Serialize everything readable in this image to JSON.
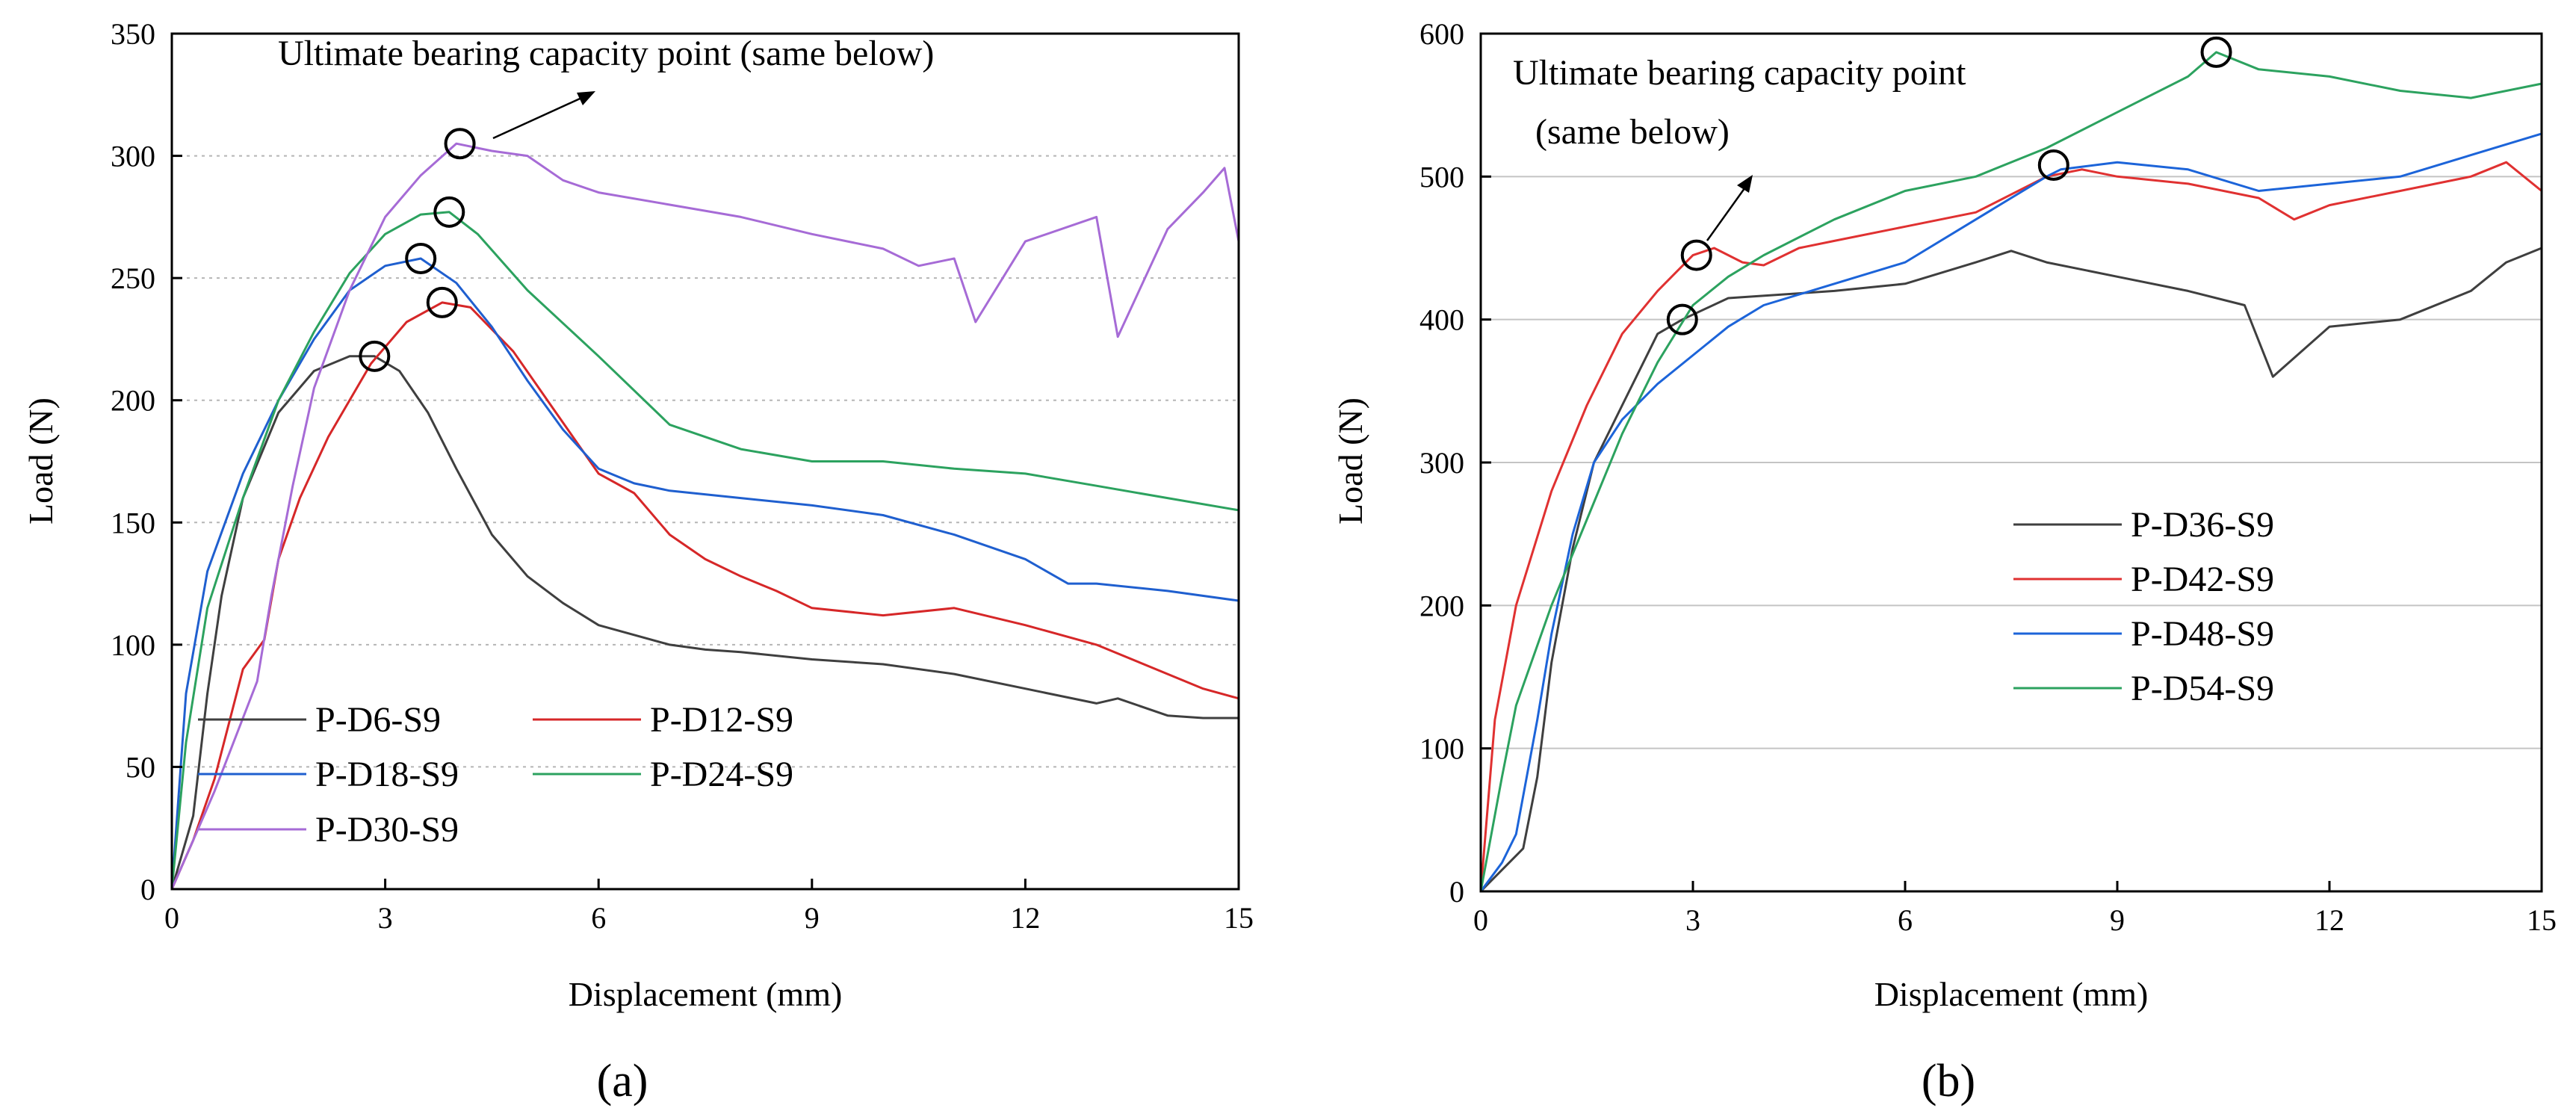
{
  "chart_data": [
    {
      "panel_label": "(a)",
      "type": "line",
      "xlabel": "Displacement (mm)",
      "ylabel": "Load (N)",
      "xlim": [
        0,
        15
      ],
      "ylim": [
        0,
        350
      ],
      "xticks": [
        0,
        3,
        6,
        9,
        12,
        15
      ],
      "yticks": [
        0,
        50,
        100,
        150,
        200,
        250,
        300,
        350
      ],
      "grid": "horizontal-dotted",
      "annotation": "Ultimate bearing capacity point (same below)",
      "legend_position": "bottom-left",
      "series": [
        {
          "name": "P-D6-S9",
          "color": "#3f3f3f",
          "x": [
            0,
            0.3,
            0.5,
            0.7,
            1.0,
            1.5,
            2.0,
            2.5,
            2.85,
            3.2,
            3.6,
            4.0,
            4.5,
            5.0,
            5.5,
            6.0,
            6.5,
            7.0,
            7.5,
            8.0,
            9.0,
            10.0,
            11.0,
            12.0,
            13.0,
            13.3,
            14.0,
            14.5,
            15.0
          ],
          "y": [
            0,
            30,
            80,
            120,
            160,
            195,
            212,
            218,
            218,
            212,
            195,
            172,
            145,
            128,
            117,
            108,
            104,
            100,
            98,
            97,
            94,
            92,
            88,
            82,
            76,
            78,
            71,
            70,
            70
          ],
          "ultimate": [
            2.85,
            218
          ]
        },
        {
          "name": "P-D12-S9",
          "color": "#d62728",
          "x": [
            0,
            0.3,
            0.6,
            1.0,
            1.3,
            1.5,
            1.8,
            2.2,
            2.8,
            3.3,
            3.8,
            4.2,
            4.8,
            5.4,
            6.0,
            6.5,
            7.0,
            7.5,
            8.0,
            8.5,
            9.0,
            10.0,
            11.0,
            12.0,
            13.0,
            14.0,
            14.5,
            15.0
          ],
          "y": [
            0,
            20,
            45,
            90,
            102,
            135,
            160,
            185,
            215,
            232,
            240,
            238,
            220,
            195,
            170,
            162,
            145,
            135,
            128,
            122,
            115,
            112,
            115,
            108,
            100,
            88,
            82,
            78
          ],
          "ultimate": [
            3.8,
            240
          ]
        },
        {
          "name": "P-D18-S9",
          "color": "#1f5fcf",
          "x": [
            0,
            0.2,
            0.5,
            1.0,
            1.5,
            2.0,
            2.5,
            3.0,
            3.5,
            4.0,
            4.5,
            5.0,
            5.5,
            6.0,
            6.5,
            7.0,
            8.0,
            9.0,
            10.0,
            11.0,
            12.0,
            12.6,
            13.0,
            14.0,
            15.0
          ],
          "y": [
            0,
            80,
            130,
            170,
            200,
            225,
            245,
            255,
            258,
            248,
            230,
            208,
            188,
            172,
            166,
            163,
            160,
            157,
            153,
            145,
            135,
            125,
            125,
            122,
            118
          ],
          "ultimate": [
            3.5,
            258
          ]
        },
        {
          "name": "P-D24-S9",
          "color": "#2ca25f",
          "x": [
            0,
            0.2,
            0.5,
            1.0,
            1.5,
            2.0,
            2.5,
            3.0,
            3.5,
            3.9,
            4.3,
            5.0,
            6.0,
            7.0,
            8.0,
            9.0,
            10.0,
            11.0,
            12.0,
            13.0,
            14.0,
            15.0
          ],
          "y": [
            0,
            60,
            115,
            160,
            200,
            228,
            252,
            268,
            276,
            277,
            268,
            245,
            218,
            190,
            180,
            175,
            175,
            172,
            170,
            165,
            160,
            155
          ],
          "ultimate": [
            3.9,
            277
          ]
        },
        {
          "name": "P-D30-S9",
          "color": "#a66bd6",
          "x": [
            0,
            0.3,
            0.6,
            0.8,
            1.0,
            1.2,
            1.4,
            1.7,
            2.0,
            2.5,
            3.0,
            3.5,
            4.0,
            4.5,
            5.0,
            5.5,
            6.0,
            7.0,
            8.0,
            9.0,
            10.0,
            10.5,
            11.0,
            11.3,
            12.0,
            13.0,
            13.3,
            14.0,
            14.5,
            14.8,
            15.0
          ],
          "y": [
            0,
            20,
            40,
            55,
            70,
            85,
            120,
            165,
            205,
            245,
            275,
            292,
            305,
            302,
            300,
            290,
            285,
            280,
            275,
            268,
            262,
            255,
            258,
            232,
            265,
            275,
            226,
            270,
            285,
            295,
            265
          ],
          "ultimate": [
            4.05,
            305
          ]
        }
      ]
    },
    {
      "panel_label": "(b)",
      "type": "line",
      "xlabel": "Displacement (mm)",
      "ylabel": "Load (N)",
      "xlim": [
        0,
        15
      ],
      "ylim": [
        0,
        600
      ],
      "xticks": [
        0,
        3,
        6,
        9,
        12,
        15
      ],
      "yticks": [
        0,
        100,
        200,
        300,
        400,
        500,
        600
      ],
      "grid": "horizontal-solid",
      "annotation_lines": [
        "Ultimate bearing capacity point",
        "(same below)"
      ],
      "legend_position": "right",
      "series": [
        {
          "name": "P-D36-S9",
          "color": "#3f3f3f",
          "x": [
            0,
            0.3,
            0.6,
            0.8,
            1.0,
            1.3,
            1.6,
            2.0,
            2.5,
            2.85,
            3.5,
            5.0,
            6.0,
            7.0,
            7.5,
            8.0,
            9.0,
            10.0,
            10.8,
            11.2,
            12.0,
            13.0,
            14.0,
            14.5,
            15.0
          ],
          "y": [
            0,
            15,
            30,
            80,
            160,
            240,
            300,
            340,
            390,
            400,
            415,
            420,
            425,
            440,
            448,
            440,
            430,
            420,
            410,
            360,
            395,
            400,
            420,
            440,
            450
          ],
          "ultimate": [
            2.85,
            400
          ]
        },
        {
          "name": "P-D42-S9",
          "color": "#e03131",
          "x": [
            0,
            0.2,
            0.5,
            1.0,
            1.5,
            2.0,
            2.5,
            3.0,
            3.3,
            3.7,
            4.0,
            4.5,
            5.0,
            6.0,
            7.0,
            8.0,
            8.5,
            9.0,
            10.0,
            11.0,
            11.5,
            12.0,
            13.0,
            14.0,
            14.5,
            15.0
          ],
          "y": [
            0,
            120,
            200,
            280,
            340,
            390,
            420,
            445,
            450,
            440,
            438,
            450,
            455,
            465,
            475,
            500,
            505,
            500,
            495,
            485,
            470,
            480,
            490,
            500,
            510,
            490
          ],
          "ultimate": [
            3.05,
            445
          ]
        },
        {
          "name": "P-D48-S9",
          "color": "#1c64d9",
          "x": [
            0,
            0.3,
            0.5,
            0.8,
            1.0,
            1.3,
            1.6,
            2.0,
            2.5,
            3.0,
            3.5,
            4.0,
            5.0,
            6.0,
            7.0,
            8.0,
            8.2,
            9.0,
            10.0,
            11.0,
            12.0,
            13.0,
            14.0,
            15.0
          ],
          "y": [
            0,
            20,
            40,
            120,
            180,
            250,
            300,
            330,
            355,
            375,
            395,
            410,
            425,
            440,
            470,
            500,
            505,
            510,
            505,
            490,
            495,
            500,
            515,
            530
          ],
          "ultimate": [
            8.1,
            508
          ]
        },
        {
          "name": "P-D54-S9",
          "color": "#2ca25f",
          "x": [
            0,
            0.3,
            0.5,
            1.0,
            1.5,
            2.0,
            2.5,
            3.0,
            3.5,
            4.0,
            5.0,
            6.0,
            7.0,
            8.0,
            9.0,
            10.0,
            10.4,
            11.0,
            12.0,
            13.0,
            14.0,
            15.0
          ],
          "y": [
            0,
            80,
            130,
            200,
            260,
            320,
            370,
            410,
            430,
            445,
            470,
            490,
            500,
            520,
            545,
            570,
            587,
            575,
            570,
            560,
            555,
            565
          ],
          "ultimate": [
            10.4,
            587
          ]
        }
      ]
    }
  ]
}
